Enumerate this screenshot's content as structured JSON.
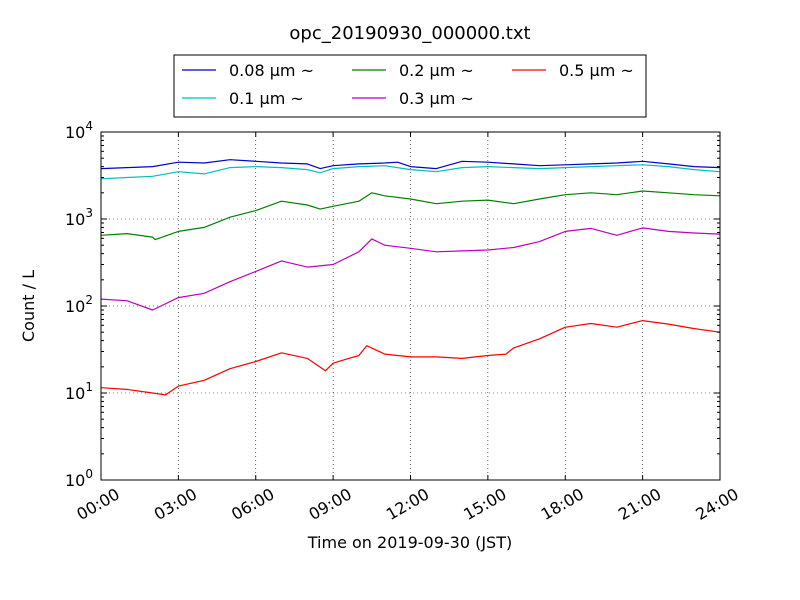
{
  "chart_data": {
    "type": "line",
    "title": "opc_20190930_000000.txt",
    "xlabel": "Time on 2019-09-30 (JST)",
    "ylabel": "Count / L",
    "y_scale": "log",
    "ylim": [
      1,
      10000
    ],
    "xlim": [
      0,
      24
    ],
    "grid": true,
    "legend_position": "top",
    "x_ticks": [
      {
        "v": 0,
        "label": "00:00"
      },
      {
        "v": 3,
        "label": "03:00"
      },
      {
        "v": 6,
        "label": "06:00"
      },
      {
        "v": 9,
        "label": "09:00"
      },
      {
        "v": 12,
        "label": "12:00"
      },
      {
        "v": 15,
        "label": "15:00"
      },
      {
        "v": 18,
        "label": "18:00"
      },
      {
        "v": 21,
        "label": "21:00"
      },
      {
        "v": 24,
        "label": "24:00"
      }
    ],
    "y_ticks": [
      {
        "v": 1,
        "base": "10",
        "exp": "0"
      },
      {
        "v": 10,
        "base": "10",
        "exp": "1"
      },
      {
        "v": 100,
        "base": "10",
        "exp": "2"
      },
      {
        "v": 1000,
        "base": "10",
        "exp": "3"
      },
      {
        "v": 10000,
        "base": "10",
        "exp": "4"
      }
    ],
    "series": [
      {
        "name": "0.08 μm ~",
        "color": "#0000cc",
        "x": [
          0,
          1,
          2,
          3,
          4,
          5,
          6,
          7,
          8,
          8.5,
          9,
          10,
          11,
          11.5,
          12,
          13,
          14,
          15,
          16,
          17,
          18,
          19,
          20,
          21,
          22,
          23,
          24
        ],
        "y": [
          3800,
          3900,
          4000,
          4500,
          4400,
          4800,
          4600,
          4400,
          4300,
          3800,
          4100,
          4300,
          4400,
          4500,
          4000,
          3800,
          4600,
          4500,
          4300,
          4100,
          4200,
          4300,
          4400,
          4600,
          4300,
          4000,
          3900
        ]
      },
      {
        "name": "0.1 μm ~",
        "color": "#00bfbf",
        "x": [
          0,
          1,
          2,
          3,
          4,
          5,
          6,
          7,
          8,
          8.5,
          9,
          10,
          11,
          12,
          13,
          14,
          15,
          16,
          17,
          18,
          19,
          20,
          21,
          22,
          23,
          24
        ],
        "y": [
          2900,
          3000,
          3100,
          3500,
          3300,
          3900,
          4000,
          3900,
          3700,
          3400,
          3800,
          4000,
          4100,
          3700,
          3500,
          3900,
          4000,
          3900,
          3800,
          3900,
          4000,
          4100,
          4200,
          4000,
          3700,
          3500
        ]
      },
      {
        "name": "0.2 μm ~",
        "color": "#008000",
        "x": [
          0,
          1,
          2,
          2.1,
          3,
          4,
          5,
          6,
          7,
          8,
          8.5,
          9,
          10,
          10.5,
          11,
          12,
          13,
          14,
          15,
          16,
          17,
          18,
          19,
          20,
          21,
          22,
          23,
          24
        ],
        "y": [
          650,
          680,
          620,
          580,
          720,
          800,
          1050,
          1250,
          1600,
          1450,
          1300,
          1400,
          1600,
          2000,
          1850,
          1700,
          1500,
          1600,
          1650,
          1500,
          1700,
          1900,
          2000,
          1900,
          2100,
          2000,
          1900,
          1850
        ]
      },
      {
        "name": "0.3 μm ~",
        "color": "#bf00bf",
        "x": [
          0,
          1,
          2,
          3,
          4,
          5,
          6,
          7,
          8,
          9,
          10,
          10.5,
          11,
          12,
          13,
          14,
          15,
          16,
          17,
          18,
          19,
          20,
          21,
          22,
          23,
          24
        ],
        "y": [
          120,
          115,
          90,
          125,
          140,
          190,
          250,
          330,
          280,
          300,
          420,
          590,
          500,
          460,
          420,
          430,
          440,
          470,
          550,
          720,
          780,
          650,
          790,
          720,
          690,
          670
        ]
      },
      {
        "name": "0.5 μm ~",
        "color": "#ff0000",
        "x": [
          0,
          1,
          2,
          2.5,
          3,
          4,
          5,
          6,
          7,
          8,
          8.7,
          9,
          9.6,
          10,
          10.3,
          11,
          12,
          13,
          14,
          15,
          15.7,
          16,
          17,
          18,
          19,
          20,
          21,
          22,
          23,
          24
        ],
        "y": [
          11.5,
          11,
          10,
          9.5,
          12,
          14,
          19,
          23,
          29,
          25,
          18,
          22,
          25,
          27,
          35,
          28,
          26,
          26,
          25,
          27,
          28,
          33,
          42,
          57,
          63,
          57,
          68,
          62,
          55,
          50
        ]
      }
    ]
  }
}
